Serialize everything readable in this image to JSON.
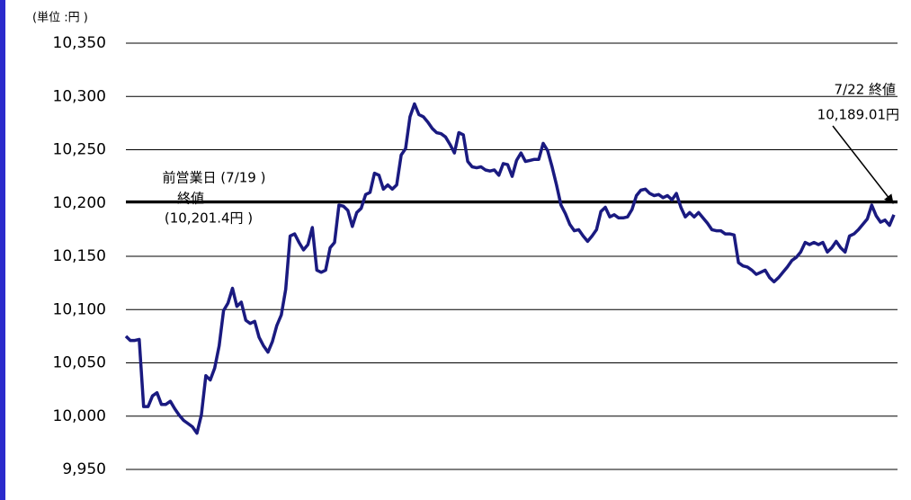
{
  "chart_data": {
    "type": "line",
    "unit_label": "(単位 :円 )",
    "ylim": [
      9950,
      10350
    ],
    "yticks": [
      {
        "value": 9950,
        "label": "9,950"
      },
      {
        "value": 10000,
        "label": "10,000"
      },
      {
        "value": 10050,
        "label": "10,050"
      },
      {
        "value": 10100,
        "label": "10,100"
      },
      {
        "value": 10150,
        "label": "10,150"
      },
      {
        "value": 10200,
        "label": "10,200"
      },
      {
        "value": 10250,
        "label": "10,250"
      },
      {
        "value": 10300,
        "label": "10,300"
      },
      {
        "value": 10350,
        "label": "10,350"
      }
    ],
    "grid": true,
    "color": "#1a1a80",
    "values": [
      10075,
      10071,
      10071,
      10072,
      10009,
      10009,
      10019,
      10022,
      10011,
      10011,
      10014,
      10007,
      10001,
      9996,
      9993,
      9990,
      9984,
      10001,
      10038,
      10034,
      10045,
      10066,
      10099,
      10106,
      10120,
      10103,
      10107,
      10090,
      10087,
      10089,
      10074,
      10066,
      10060,
      10070,
      10085,
      10095,
      10119,
      10169,
      10171,
      10163,
      10156,
      10161,
      10177,
      10137,
      10135,
      10137,
      10158,
      10163,
      10198,
      10197,
      10193,
      10178,
      10191,
      10195,
      10208,
      10210,
      10228,
      10226,
      10213,
      10217,
      10213,
      10217,
      10245,
      10251,
      10281,
      10293,
      10283,
      10281,
      10276,
      10270,
      10266,
      10265,
      10262,
      10255,
      10247,
      10266,
      10264,
      10239,
      10234,
      10233,
      10234,
      10231,
      10230,
      10231,
      10226,
      10237,
      10236,
      10225,
      10240,
      10247,
      10239,
      10240,
      10241,
      10241,
      10256,
      10249,
      10234,
      10217,
      10198,
      10190,
      10180,
      10174,
      10175,
      10169,
      10164,
      10169,
      10175,
      10192,
      10196,
      10187,
      10189,
      10186,
      10186,
      10187,
      10194,
      10207,
      10212,
      10213,
      10209,
      10207,
      10208,
      10205,
      10207,
      10203,
      10209,
      10196,
      10187,
      10191,
      10187,
      10191,
      10186,
      10181,
      10175,
      10174,
      10174,
      10171,
      10171,
      10170,
      10144,
      10141,
      10140,
      10137,
      10133,
      10135,
      10137,
      10130,
      10126,
      10130,
      10135,
      10140,
      10146,
      10149,
      10154,
      10163,
      10161,
      10163,
      10161,
      10163,
      10154,
      10158,
      10164,
      10158,
      10154,
      10169,
      10171,
      10175,
      10180,
      10185,
      10198,
      10188,
      10182,
      10184,
      10179,
      10189.01
    ],
    "reference_line": {
      "value": 10201.4,
      "label_lines": [
        "前営業日 (7/19 )",
        "終値",
        "(10,201.4円 )"
      ]
    },
    "close_annotation": [
      "7/22  終値",
      "10,189.01円"
    ]
  }
}
